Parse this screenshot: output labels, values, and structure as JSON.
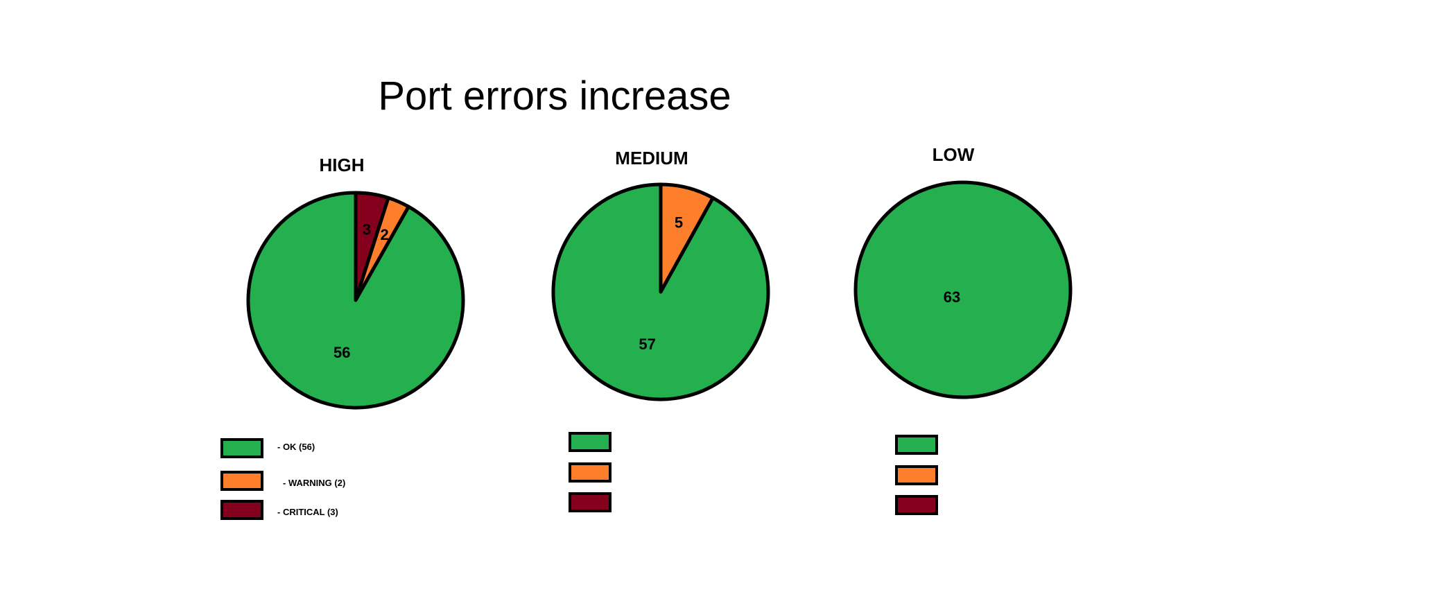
{
  "title": "Port errors increase",
  "colors": {
    "ok": "#24b04e",
    "warning": "#fd7f2c",
    "critical": "#85001c",
    "outline": "#000000"
  },
  "chart_data": [
    {
      "type": "pie",
      "title": "HIGH",
      "slices": [
        {
          "label": "OK",
          "value": 56,
          "color": "#24b04e"
        },
        {
          "label": "WARNING",
          "value": 2,
          "color": "#fd7f2c"
        },
        {
          "label": "CRITICAL",
          "value": 3,
          "color": "#85001c"
        }
      ],
      "legend": [
        "- OK (56)",
        "- WARNING (2)",
        "- CRITICAL (3)"
      ]
    },
    {
      "type": "pie",
      "title": "MEDIUM",
      "slices": [
        {
          "label": "OK",
          "value": 57,
          "color": "#24b04e"
        },
        {
          "label": "WARNING",
          "value": 5,
          "color": "#fd7f2c"
        },
        {
          "label": "CRITICAL",
          "value": 0,
          "color": "#85001c"
        }
      ],
      "legend": [
        "",
        "",
        ""
      ]
    },
    {
      "type": "pie",
      "title": "LOW",
      "slices": [
        {
          "label": "OK",
          "value": 63,
          "color": "#24b04e"
        },
        {
          "label": "WARNING",
          "value": 0,
          "color": "#fd7f2c"
        },
        {
          "label": "CRITICAL",
          "value": 0,
          "color": "#85001c"
        }
      ],
      "legend": [
        "",
        "",
        ""
      ]
    }
  ]
}
